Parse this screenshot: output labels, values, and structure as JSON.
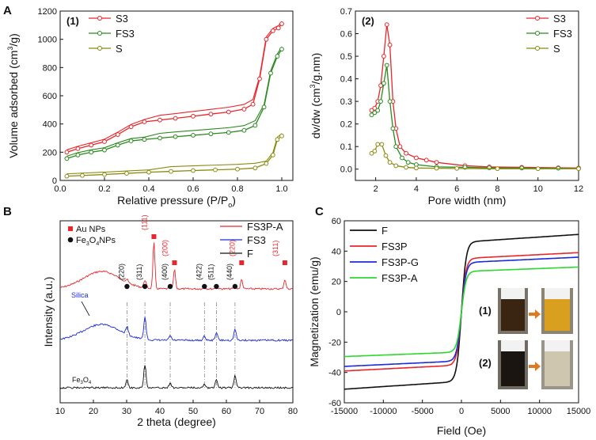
{
  "colors": {
    "red": "#e8262b",
    "green": "#2a8a1e",
    "olive": "#8a8a10",
    "blue": "#1c2ad8",
    "black": "#111111",
    "lime": "#2dd82d",
    "gray": "#888888"
  },
  "chart_data": [
    {
      "id": "A",
      "letter": "A",
      "panel_label": "(1)",
      "type": "line",
      "xlabel": "Relative pressure (P/P",
      "xlabel_sub": "o",
      "xlabel_end": ")",
      "ylabel": "Volume adsorbed (cm",
      "ylabel_sup": "3",
      "ylabel_end": "/g)",
      "xlim": [
        0,
        1.05
      ],
      "ylim": [
        0,
        1200
      ],
      "xticks": [
        "0.0",
        "0.2",
        "0.4",
        "0.6",
        "0.8",
        "1.0"
      ],
      "xtickvals": [
        0,
        0.2,
        0.4,
        0.6,
        0.8,
        1.0
      ],
      "yticks": [
        "0",
        "200",
        "400",
        "600",
        "800",
        "1000",
        "1200"
      ],
      "ytickvals": [
        0,
        200,
        400,
        600,
        800,
        1000,
        1200
      ],
      "series": [
        {
          "name": "S3",
          "color": "red",
          "x": [
            0.03,
            0.08,
            0.14,
            0.2,
            0.26,
            0.32,
            0.38,
            0.45,
            0.52,
            0.6,
            0.68,
            0.76,
            0.83,
            0.87,
            0.9,
            0.93,
            0.96,
            0.985,
            1.0
          ],
          "y": [
            200,
            225,
            250,
            275,
            325,
            380,
            415,
            428,
            440,
            455,
            470,
            485,
            505,
            540,
            720,
            1000,
            1060,
            1080,
            1110
          ]
        },
        {
          "name": "FS3",
          "color": "green",
          "x": [
            0.03,
            0.08,
            0.14,
            0.2,
            0.26,
            0.32,
            0.38,
            0.45,
            0.52,
            0.6,
            0.68,
            0.76,
            0.83,
            0.88,
            0.92,
            0.95,
            0.98,
            1.0
          ],
          "y": [
            155,
            180,
            200,
            215,
            250,
            280,
            290,
            300,
            310,
            320,
            330,
            340,
            355,
            390,
            520,
            760,
            880,
            930
          ]
        },
        {
          "name": "S",
          "color": "olive",
          "x": [
            0.03,
            0.1,
            0.2,
            0.3,
            0.4,
            0.5,
            0.6,
            0.7,
            0.8,
            0.88,
            0.93,
            0.96,
            0.98,
            1.0
          ],
          "y": [
            30,
            35,
            42,
            50,
            58,
            64,
            70,
            75,
            80,
            88,
            120,
            180,
            290,
            315
          ]
        }
      ]
    },
    {
      "id": "A2",
      "panel_label": "(2)",
      "type": "line",
      "xlabel": "Pore width (nm)",
      "ylabel": "dv/dw (cm",
      "ylabel_sup": "3",
      "ylabel_end": "/g.nm)",
      "xlim": [
        1,
        12
      ],
      "ylim": [
        -0.05,
        0.7
      ],
      "xticks": [
        "2",
        "4",
        "6",
        "8",
        "10",
        "12"
      ],
      "xtickvals": [
        2,
        4,
        6,
        8,
        10,
        12
      ],
      "yticks": [
        "0.0",
        "0.1",
        "0.2",
        "0.3",
        "0.4",
        "0.5",
        "0.6",
        "0.7"
      ],
      "ytickvals": [
        0,
        0.1,
        0.2,
        0.3,
        0.4,
        0.5,
        0.6,
        0.7
      ],
      "series": [
        {
          "name": "S3",
          "color": "red",
          "x": [
            1.8,
            1.95,
            2.1,
            2.25,
            2.4,
            2.55,
            2.7,
            2.85,
            3.0,
            3.2,
            3.5,
            4.0,
            4.5,
            5.0,
            6.4,
            7.6,
            9.2,
            11.0,
            12.0
          ],
          "y": [
            0.26,
            0.27,
            0.3,
            0.37,
            0.5,
            0.64,
            0.55,
            0.3,
            0.18,
            0.1,
            0.07,
            0.05,
            0.04,
            0.03,
            0.015,
            0.01,
            0.008,
            0.006,
            0.005
          ]
        },
        {
          "name": "FS3",
          "color": "green",
          "x": [
            1.8,
            1.95,
            2.1,
            2.25,
            2.4,
            2.55,
            2.7,
            2.85,
            3.0,
            3.3,
            3.6,
            4.0,
            5.0,
            6.4,
            7.6,
            9.2,
            11.0,
            12.0
          ],
          "y": [
            0.24,
            0.25,
            0.26,
            0.3,
            0.38,
            0.46,
            0.3,
            0.18,
            0.1,
            0.05,
            0.03,
            0.02,
            0.01,
            0.008,
            0.006,
            0.005,
            0.004,
            0.003
          ]
        },
        {
          "name": "S",
          "color": "olive",
          "x": [
            1.8,
            1.95,
            2.1,
            2.3,
            2.5,
            2.7,
            3.0,
            3.5,
            4.0,
            5.0,
            6.0,
            8.0,
            10.0,
            12.0
          ],
          "y": [
            0.07,
            0.08,
            0.11,
            0.11,
            0.06,
            0.03,
            0.015,
            0.008,
            0.005,
            0.004,
            0.003,
            0.002,
            0.002,
            0.002
          ]
        }
      ]
    },
    {
      "id": "B",
      "letter": "B",
      "type": "line",
      "xlabel": "2 theta (degree)",
      "ylabel": "Intensity (a.u.)",
      "xlim": [
        10,
        80
      ],
      "xticks": [
        "10",
        "20",
        "30",
        "40",
        "50",
        "60",
        "70",
        "80"
      ],
      "xtickvals": [
        10,
        20,
        30,
        40,
        50,
        60,
        70,
        80
      ],
      "series": [
        {
          "name": "FS3P-A",
          "color": "red"
        },
        {
          "name": "FS3",
          "color": "blue"
        },
        {
          "name": "F",
          "color": "black"
        }
      ],
      "legend_markers": [
        {
          "label": "Au NPs",
          "shape": "square"
        },
        {
          "label": "Fe",
          "sub": "3",
          "mid": "O",
          "sub2": "4",
          "end": "NPs",
          "shape": "circle"
        }
      ],
      "peaks": [
        {
          "label": "(220)",
          "x": 30.1,
          "kind": "Fe3O4"
        },
        {
          "label": "(311)",
          "x": 35.5,
          "kind": "Fe3O4"
        },
        {
          "label": "(111)",
          "x": 38.2,
          "kind": "Au"
        },
        {
          "label": "(400)",
          "x": 43.1,
          "kind": "Fe3O4"
        },
        {
          "label": "(200)",
          "x": 44.4,
          "kind": "Au"
        },
        {
          "label": "(422)",
          "x": 53.4,
          "kind": "Fe3O4"
        },
        {
          "label": "(511)",
          "x": 57.0,
          "kind": "Fe3O4"
        },
        {
          "label": "(440)",
          "x": 62.6,
          "kind": "Fe3O4"
        },
        {
          "label": "(220)",
          "x": 64.6,
          "kind": "Au"
        },
        {
          "label": "(311)",
          "x": 77.6,
          "kind": "Au"
        }
      ],
      "annotations": {
        "silica": "Silica",
        "fe3o4": "Fe",
        "fe3o4_sub": "3",
        "fe3o4_mid": "O",
        "fe3o4_sub2": "4"
      }
    },
    {
      "id": "C",
      "letter": "C",
      "type": "line",
      "xlabel": "Field (Oe)",
      "ylabel": "Magnetization (emu/g)",
      "xlim": [
        -15000,
        15000
      ],
      "ylim": [
        -60,
        60
      ],
      "xticks": [
        "-15000",
        "-10000",
        "-5000",
        "0",
        "5000",
        "10000",
        "15000"
      ],
      "xtickvals": [
        -15000,
        -10000,
        -5000,
        0,
        5000,
        10000,
        15000
      ],
      "yticks": [
        "-60",
        "-40",
        "-20",
        "0",
        "20",
        "40",
        "60"
      ],
      "ytickvals": [
        -60,
        -40,
        -20,
        0,
        20,
        40,
        60
      ],
      "series": [
        {
          "name": "F",
          "color": "black",
          "ms": 51
        },
        {
          "name": "FS3P",
          "color": "red",
          "ms": 39
        },
        {
          "name": "FS3P-G",
          "color": "blue",
          "ms": 36
        },
        {
          "name": "FS3P-A",
          "color": "lime",
          "ms": 29.5
        }
      ],
      "inset_labels": [
        "(1)",
        "(2)"
      ]
    }
  ]
}
